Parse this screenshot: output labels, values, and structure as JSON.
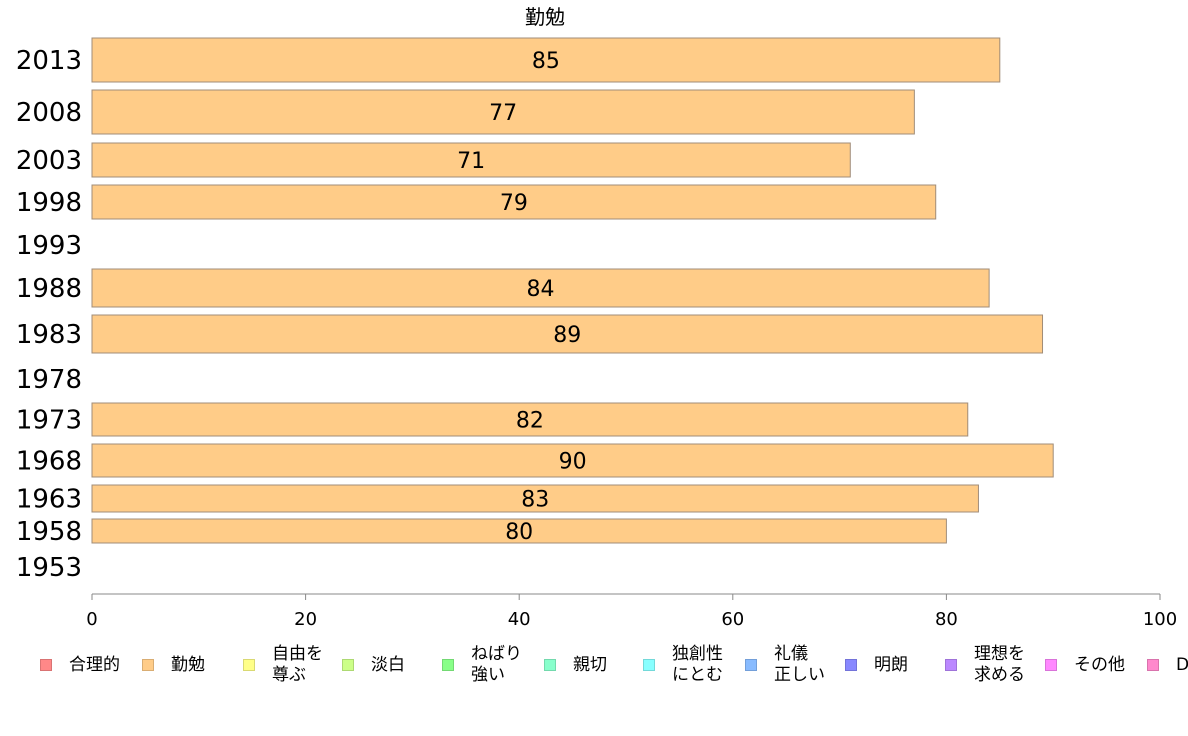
{
  "chart_data": {
    "type": "bar",
    "orientation": "horizontal",
    "title": "勤勉",
    "categories": [
      "2013",
      "2008",
      "2003",
      "1998",
      "1993",
      "1988",
      "1983",
      "1978",
      "1973",
      "1968",
      "1963",
      "1958",
      "1953"
    ],
    "series": [
      {
        "name": "勤勉",
        "color": "#ffcc88",
        "values": [
          85,
          77,
          71,
          79,
          null,
          84,
          89,
          null,
          82,
          90,
          83,
          80,
          null
        ],
        "data_labels": [
          "85",
          "77",
          "71",
          "79",
          "",
          "84",
          "89",
          "",
          "82",
          "90",
          "83",
          "80",
          ""
        ]
      }
    ],
    "xlim": [
      0,
      100
    ],
    "xticks": [
      "0",
      "20",
      "40",
      "60",
      "80",
      "100"
    ],
    "grid": false,
    "legend_position": "bottom",
    "legend": [
      {
        "label": "合理的",
        "color": "#ff8888"
      },
      {
        "label": "勤勉",
        "color": "#ffcc88"
      },
      {
        "label": "自由を\n尊ぶ",
        "color": "#ffff88"
      },
      {
        "label": "淡白",
        "color": "#ccff88"
      },
      {
        "label": "ねばり\n強い",
        "color": "#88ff88"
      },
      {
        "label": "親切",
        "color": "#88ffcc"
      },
      {
        "label": "独創性\nにとむ",
        "color": "#88ffff"
      },
      {
        "label": "礼儀\n正しい",
        "color": "#88bbff"
      },
      {
        "label": "明朗",
        "color": "#8888ff"
      },
      {
        "label": "理想を\n求める",
        "color": "#bb88ff"
      },
      {
        "label": "その他",
        "color": "#ff88ff"
      },
      {
        "label": "D",
        "color": "#ff88cc"
      }
    ]
  }
}
